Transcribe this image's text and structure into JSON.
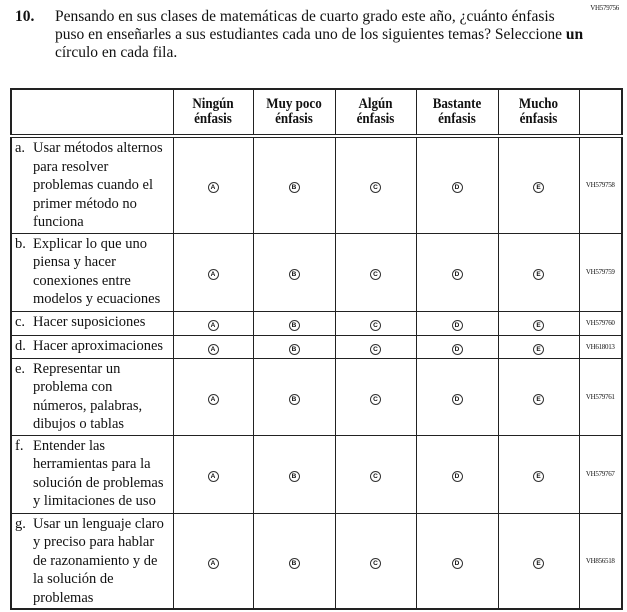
{
  "page_code": "VH579756",
  "question": {
    "number": "10.",
    "text_before": "Pensando en sus clases de matemáticas de cuarto grado este año, ¿cuánto énfasis puso en enseñarles a sus estudiantes cada uno de los siguientes temas? Seleccione ",
    "text_bold": "un",
    "text_after": " círculo en cada fila."
  },
  "columns": [
    {
      "line1": "Ningún",
      "line2": "énfasis",
      "letter": "A"
    },
    {
      "line1": "Muy poco",
      "line2": "énfasis",
      "letter": "B"
    },
    {
      "line1": "Algún",
      "line2": "énfasis",
      "letter": "C"
    },
    {
      "line1": "Bastante",
      "line2": "énfasis",
      "letter": "D"
    },
    {
      "line1": "Mucho",
      "line2": "énfasis",
      "letter": "E"
    }
  ],
  "rows": [
    {
      "letter": "a.",
      "text": "Usar métodos alternos para resolver problemas cuando el primer método no funciona",
      "id": "VH579758"
    },
    {
      "letter": "b.",
      "text": "Explicar lo que uno piensa y hacer conexiones entre modelos y ecuaciones",
      "id": "VH579759"
    },
    {
      "letter": "c.",
      "text": "Hacer suposiciones",
      "id": "VH579760"
    },
    {
      "letter": "d.",
      "text": "Hacer aproximaciones",
      "id": "VH618013"
    },
    {
      "letter": "e.",
      "text": "Representar un problema con números, palabras, dibujos o tablas",
      "id": "VH579761"
    },
    {
      "letter": "f.",
      "text": "Entender las herramientas para la solución de problemas y limitaciones de uso",
      "id": "VH579767"
    },
    {
      "letter": "g.",
      "text": "Usar un lenguaje claro y preciso para hablar de razonamiento y de la solución de problemas",
      "id": "VH856518"
    }
  ]
}
